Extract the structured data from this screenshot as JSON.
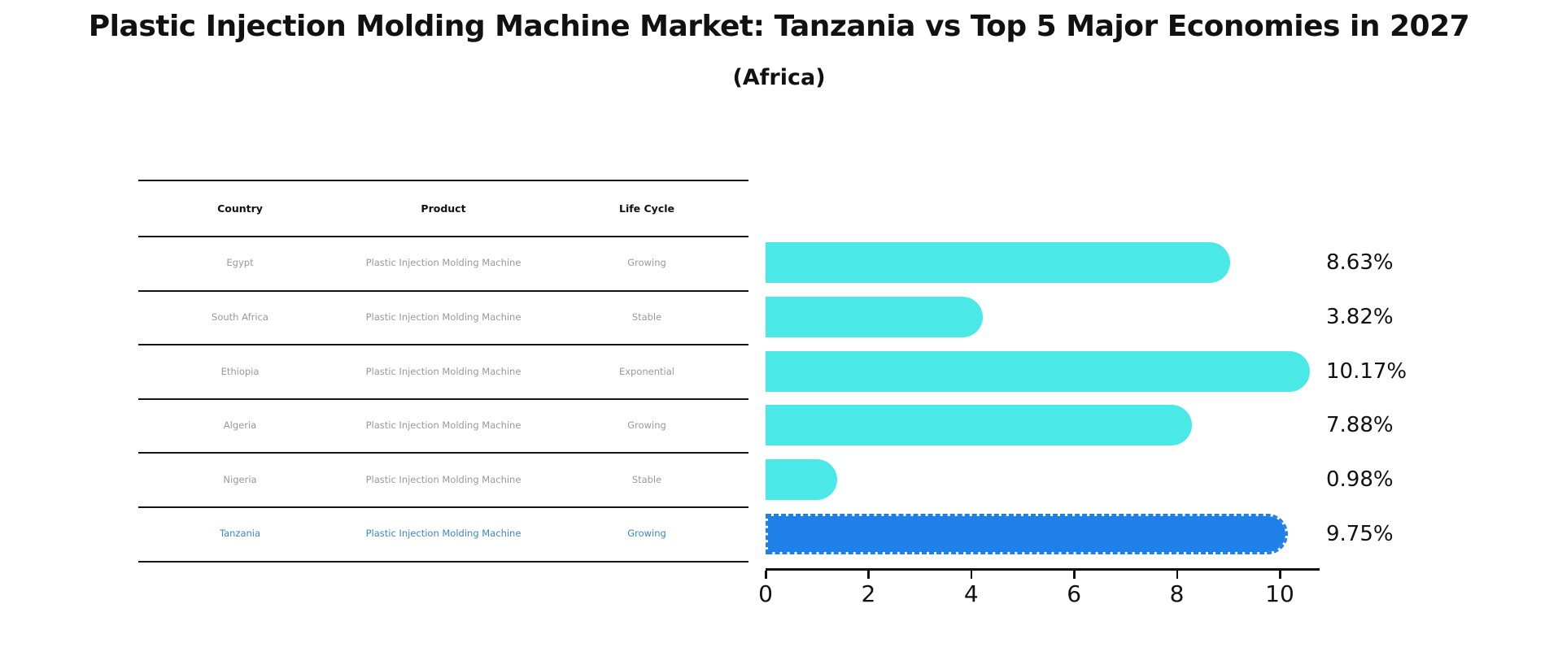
{
  "title": "Plastic Injection Molding Machine Market: Tanzania vs Top 5 Major Economies in 2027",
  "subtitle": "(Africa)",
  "table": {
    "headers": [
      "Country",
      "Product",
      "Life Cycle"
    ],
    "rows": [
      {
        "country": "Egypt",
        "product": "Plastic Injection Molding Machine",
        "life_cycle": "Growing",
        "highlight": false
      },
      {
        "country": "South Africa",
        "product": "Plastic Injection Molding Machine",
        "life_cycle": "Stable",
        "highlight": false
      },
      {
        "country": "Ethiopia",
        "product": "Plastic Injection Molding Machine",
        "life_cycle": "Exponential",
        "highlight": false
      },
      {
        "country": "Algeria",
        "product": "Plastic Injection Molding Machine",
        "life_cycle": "Growing",
        "highlight": false
      },
      {
        "country": "Nigeria",
        "product": "Plastic Injection Molding Machine",
        "life_cycle": "Stable",
        "highlight": false
      },
      {
        "country": "Tanzania",
        "product": "Plastic Injection Molding Machine",
        "life_cycle": "Growing",
        "highlight": true
      }
    ]
  },
  "chart_data": {
    "type": "bar",
    "orientation": "horizontal",
    "title": "Plastic Injection Molding Machine Market: Tanzania vs Top 5 Major Economies in 2027 (Africa)",
    "categories": [
      "Egypt",
      "South Africa",
      "Ethiopia",
      "Algeria",
      "Nigeria",
      "Tanzania"
    ],
    "values": [
      8.63,
      3.82,
      10.17,
      7.88,
      0.98,
      9.75
    ],
    "value_labels": [
      "8.63%",
      "3.82%",
      "10.17%",
      "7.88%",
      "0.98%",
      "9.75%"
    ],
    "x_ticks": [
      0,
      2,
      4,
      6,
      8,
      10
    ],
    "xlim": [
      0,
      10.75
    ],
    "grid": false,
    "legend": false,
    "highlight_index": 5,
    "bar_color": "#4ae8e6",
    "highlight_color": "#1e80e8",
    "highlight_text_color": "#3e86c8"
  }
}
